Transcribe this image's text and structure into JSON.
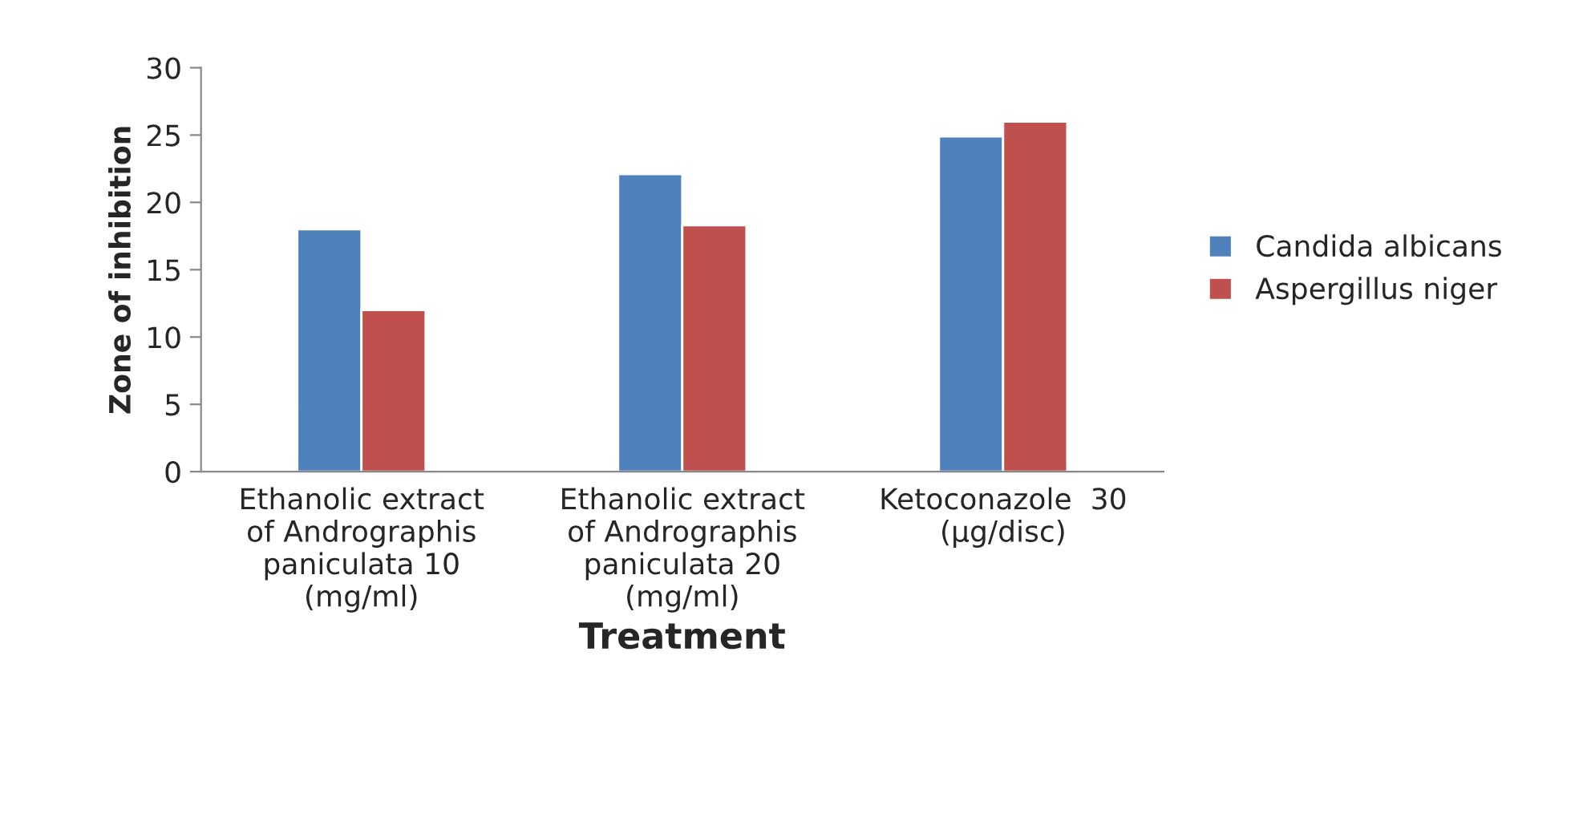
{
  "chart_data": {
    "type": "bar",
    "xlabel": "Treatment",
    "ylabel": "Zone of inhibition",
    "categories": [
      "Ethanolic extract\nof Andrographis\npaniculata 10\n(mg/ml)",
      "Ethanolic extract\nof Andrographis\npaniculata 20\n(mg/ml)",
      "Ketoconazole  30\n(µg/disc)"
    ],
    "series": [
      {
        "name": "Candida albicans",
        "color": "#4f81bd",
        "values": [
          18,
          22.1,
          24.9
        ]
      },
      {
        "name": "Aspergillus niger",
        "color": "#c0504d",
        "values": [
          12,
          18.3,
          26
        ]
      }
    ],
    "ylim": [
      0,
      30
    ],
    "yticks": [
      0,
      5,
      10,
      15,
      20,
      25,
      30
    ],
    "grid": false,
    "legend": "right"
  }
}
